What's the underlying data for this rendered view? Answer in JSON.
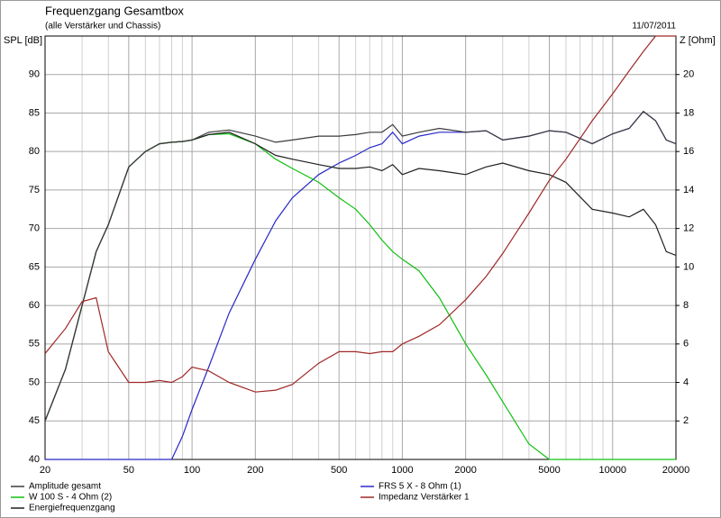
{
  "chart_data": {
    "type": "line",
    "title": "Frequenzgang Gesamtbox",
    "subtitle": "(alle Verstärker und Chassis)",
    "date": "11/07/2011",
    "y_label": "SPL [dB]",
    "y2_label": "Z [Ohm]",
    "x_scale": "log",
    "grid": true,
    "x": [
      20,
      25,
      30,
      35,
      40,
      50,
      60,
      70,
      80,
      90,
      100,
      120,
      150,
      200,
      250,
      300,
      400,
      500,
      600,
      700,
      800,
      900,
      1000,
      1200,
      1500,
      2000,
      2500,
      3000,
      4000,
      5000,
      6000,
      8000,
      10000,
      12000,
      14000,
      16000,
      18000,
      20000
    ],
    "xlim": [
      20,
      20000
    ],
    "xticks": [
      20,
      50,
      100,
      200,
      500,
      1000,
      2000,
      5000,
      10000,
      20000
    ],
    "xminor": [
      30,
      40,
      60,
      70,
      80,
      90,
      300,
      400,
      600,
      700,
      800,
      900,
      3000,
      4000,
      6000,
      7000,
      8000,
      9000
    ],
    "ylim": [
      40,
      95
    ],
    "yticks": [
      40,
      45,
      50,
      55,
      60,
      65,
      70,
      75,
      80,
      85,
      90
    ],
    "y2lim": [
      0,
      22
    ],
    "y2ticks": [
      2,
      4,
      6,
      8,
      10,
      12,
      14,
      16,
      18,
      20
    ],
    "series": [
      {
        "name": "FRS 5 X - 8 Ohm (1)",
        "color": "#2828c8",
        "values": [
          40,
          40,
          40,
          40,
          40,
          40,
          40,
          40,
          40,
          43,
          46.5,
          52,
          59,
          66,
          71,
          74,
          77,
          78.5,
          79.5,
          80.5,
          81,
          82.5,
          81,
          82,
          82.5,
          82.5,
          82.7,
          81.5,
          82,
          82.7,
          82.5,
          81,
          82.3,
          83,
          85.2,
          84,
          81.5,
          81
        ]
      },
      {
        "name": "W 100 S - 4 Ohm (2)",
        "color": "#10c010",
        "values": [
          45,
          51.7,
          60,
          67,
          70.5,
          78,
          80,
          81,
          81.2,
          81.3,
          81.5,
          82.2,
          82.3,
          81,
          79,
          77.8,
          76,
          74,
          72.5,
          70.5,
          68.5,
          67,
          66,
          64.5,
          61,
          55,
          51,
          47.5,
          42,
          40,
          40,
          40,
          40,
          40,
          40,
          40,
          40,
          40
        ]
      },
      {
        "name": "Energiefrequenzgang",
        "color": "#202020",
        "values": [
          45,
          51.7,
          60,
          67,
          70.5,
          78,
          80,
          81,
          81.2,
          81.3,
          81.5,
          82.2,
          82.5,
          81,
          79.5,
          79,
          78.3,
          77.8,
          77.8,
          78,
          77.5,
          78.3,
          77,
          77.8,
          77.5,
          77,
          78,
          78.5,
          77.5,
          77,
          76,
          72.5,
          72,
          71.5,
          72.5,
          70.5,
          67,
          66.5
        ]
      },
      {
        "name": "Amplitude gesamt",
        "color": "#3a3a3a",
        "values": [
          45,
          51.7,
          60,
          67,
          70.5,
          78,
          80,
          81,
          81.2,
          81.3,
          81.5,
          82.5,
          82.8,
          82,
          81.2,
          81.5,
          82,
          82,
          82.2,
          82.5,
          82.5,
          83.5,
          82,
          82.5,
          83,
          82.5,
          82.7,
          81.5,
          82,
          82.7,
          82.5,
          81,
          82.3,
          83,
          85.2,
          84,
          81.5,
          81
        ]
      },
      {
        "name": "Impedanz Verstärker 1",
        "color": "#a02828",
        "axis": "y2",
        "values": [
          5.5,
          6.8,
          8.2,
          8.4,
          5.6,
          4.0,
          4.0,
          4.1,
          4.0,
          4.3,
          4.8,
          4.6,
          4.0,
          3.5,
          3.6,
          3.9,
          5.0,
          5.6,
          5.6,
          5.5,
          5.6,
          5.6,
          6.0,
          6.4,
          7.0,
          8.3,
          9.5,
          10.7,
          12.8,
          14.5,
          15.6,
          17.6,
          19.0,
          20.2,
          21.2,
          22,
          22,
          22
        ]
      }
    ],
    "legend_order": [
      3,
      1,
      2,
      0,
      4
    ]
  }
}
